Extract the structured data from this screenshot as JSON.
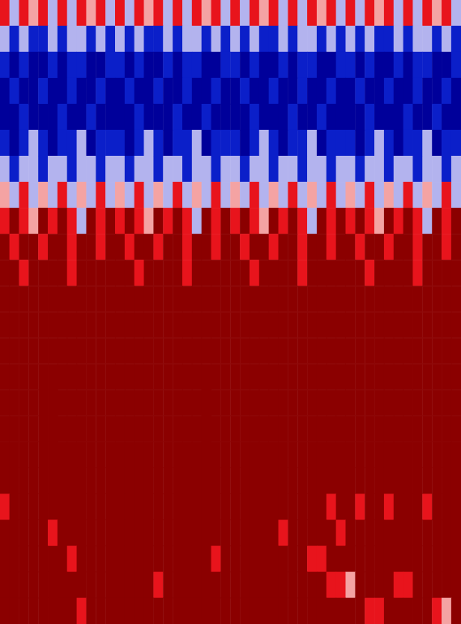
{
  "chart_data": {
    "type": "heatmap",
    "tick_labels": false,
    "grid": false,
    "color_range": [
      0,
      5
    ],
    "colors": [
      "#00009a",
      "#0b1fc9",
      "#b3b3ee",
      "#f4a3a3",
      "#e8141c",
      "#8b0000"
    ],
    "cells": [
      [
        4,
        2,
        4,
        3,
        4,
        2,
        4,
        2,
        4,
        3,
        4,
        2,
        4,
        2,
        4,
        3,
        4,
        2,
        4,
        2,
        4,
        3,
        4,
        2,
        4,
        2,
        4,
        3,
        4,
        2,
        4,
        2,
        4,
        3,
        4,
        2,
        4,
        2,
        4,
        3,
        4,
        2,
        4,
        2,
        4,
        3,
        4,
        2
      ],
      [
        2,
        1,
        2,
        1,
        1,
        2,
        1,
        2,
        2,
        1,
        2,
        1,
        2,
        1,
        2,
        1,
        1,
        2,
        1,
        2,
        2,
        1,
        2,
        1,
        2,
        1,
        2,
        1,
        1,
        2,
        1,
        2,
        2,
        1,
        2,
        1,
        2,
        1,
        2,
        1,
        1,
        2,
        1,
        2,
        2,
        1,
        2,
        1
      ],
      [
        1,
        0,
        1,
        0,
        0,
        1,
        0,
        1,
        1,
        0,
        0,
        1,
        1,
        0,
        1,
        0,
        0,
        1,
        0,
        1,
        1,
        0,
        0,
        1,
        1,
        0,
        1,
        0,
        0,
        1,
        0,
        1,
        1,
        0,
        0,
        1,
        1,
        0,
        1,
        0,
        0,
        1,
        0,
        1,
        1,
        0,
        0,
        1
      ],
      [
        0,
        1,
        0,
        0,
        1,
        0,
        0,
        1,
        0,
        0,
        1,
        0,
        0,
        1,
        0,
        0,
        1,
        0,
        0,
        1,
        0,
        0,
        1,
        0,
        0,
        1,
        0,
        0,
        1,
        0,
        0,
        1,
        0,
        0,
        1,
        0,
        0,
        1,
        0,
        0,
        1,
        0,
        0,
        1,
        0,
        0,
        1,
        0
      ],
      [
        0,
        0,
        1,
        0,
        0,
        0,
        1,
        0,
        0,
        1,
        0,
        0,
        0,
        0,
        1,
        0,
        0,
        0,
        1,
        0,
        0,
        1,
        0,
        0,
        0,
        0,
        1,
        0,
        0,
        0,
        1,
        0,
        0,
        1,
        0,
        0,
        0,
        0,
        1,
        0,
        0,
        0,
        1,
        0,
        0,
        1,
        0,
        0
      ],
      [
        1,
        0,
        1,
        2,
        1,
        0,
        1,
        1,
        2,
        0,
        1,
        1,
        1,
        0,
        1,
        2,
        1,
        0,
        1,
        1,
        2,
        0,
        1,
        1,
        1,
        0,
        1,
        2,
        1,
        0,
        1,
        1,
        2,
        0,
        1,
        1,
        1,
        0,
        1,
        2,
        1,
        0,
        1,
        1,
        2,
        0,
        1,
        1
      ],
      [
        2,
        1,
        2,
        2,
        1,
        2,
        2,
        1,
        2,
        2,
        1,
        2,
        2,
        1,
        2,
        2,
        1,
        2,
        2,
        1,
        2,
        2,
        1,
        2,
        2,
        1,
        2,
        2,
        1,
        2,
        2,
        1,
        2,
        2,
        1,
        2,
        2,
        1,
        2,
        2,
        1,
        2,
        2,
        1,
        2,
        2,
        1,
        2
      ],
      [
        3,
        2,
        4,
        2,
        3,
        2,
        4,
        2,
        3,
        2,
        4,
        2,
        3,
        2,
        4,
        2,
        3,
        2,
        4,
        2,
        3,
        2,
        4,
        2,
        3,
        2,
        4,
        2,
        3,
        2,
        4,
        2,
        3,
        2,
        4,
        2,
        3,
        2,
        4,
        2,
        3,
        2,
        4,
        2,
        3,
        2,
        4,
        2
      ],
      [
        4,
        5,
        4,
        3,
        5,
        4,
        5,
        4,
        2,
        5,
        4,
        5,
        4,
        5,
        4,
        3,
        5,
        4,
        5,
        4,
        2,
        5,
        4,
        5,
        4,
        5,
        4,
        3,
        5,
        4,
        5,
        4,
        2,
        5,
        4,
        5,
        4,
        5,
        4,
        3,
        5,
        4,
        5,
        4,
        2,
        5,
        4,
        5
      ],
      [
        5,
        4,
        5,
        5,
        4,
        5,
        5,
        4,
        5,
        5,
        4,
        5,
        5,
        4,
        5,
        5,
        4,
        5,
        5,
        4,
        5,
        5,
        4,
        5,
        5,
        4,
        5,
        5,
        4,
        5,
        5,
        4,
        5,
        5,
        4,
        5,
        5,
        4,
        5,
        5,
        4,
        5,
        5,
        4,
        5,
        5,
        4,
        5
      ],
      [
        5,
        5,
        4,
        5,
        5,
        5,
        5,
        4,
        5,
        5,
        5,
        5,
        5,
        5,
        4,
        5,
        5,
        5,
        5,
        4,
        5,
        5,
        5,
        5,
        5,
        5,
        4,
        5,
        5,
        5,
        5,
        4,
        5,
        5,
        5,
        5,
        5,
        5,
        4,
        5,
        5,
        5,
        5,
        4,
        5,
        5,
        5,
        5
      ],
      [
        5,
        5,
        5,
        5,
        5,
        5,
        5,
        5,
        5,
        5,
        5,
        5,
        5,
        5,
        5,
        5,
        5,
        5,
        5,
        5,
        5,
        5,
        5,
        5,
        5,
        5,
        5,
        5,
        5,
        5,
        5,
        5,
        5,
        5,
        5,
        5,
        5,
        5,
        5,
        5,
        5,
        5,
        5,
        5,
        5,
        5,
        5,
        5
      ],
      [
        5,
        5,
        5,
        5,
        5,
        5,
        5,
        5,
        5,
        5,
        5,
        5,
        5,
        5,
        5,
        5,
        5,
        5,
        5,
        5,
        5,
        5,
        5,
        5,
        5,
        5,
        5,
        5,
        5,
        5,
        5,
        5,
        5,
        5,
        5,
        5,
        5,
        5,
        5,
        5,
        5,
        5,
        5,
        5,
        5,
        5,
        5,
        5
      ],
      [
        5,
        5,
        5,
        5,
        5,
        5,
        5,
        5,
        5,
        5,
        5,
        5,
        5,
        5,
        5,
        5,
        5,
        5,
        5,
        5,
        5,
        5,
        5,
        5,
        5,
        5,
        5,
        5,
        5,
        5,
        5,
        5,
        5,
        5,
        5,
        5,
        5,
        5,
        5,
        5,
        5,
        5,
        5,
        5,
        5,
        5,
        5,
        5
      ],
      [
        5,
        5,
        5,
        5,
        5,
        5,
        5,
        5,
        5,
        5,
        5,
        5,
        5,
        5,
        5,
        5,
        5,
        5,
        5,
        5,
        5,
        5,
        5,
        5,
        5,
        5,
        5,
        5,
        5,
        5,
        5,
        5,
        5,
        5,
        5,
        5,
        5,
        5,
        5,
        5,
        5,
        5,
        5,
        5,
        5,
        5,
        5,
        5
      ],
      [
        5,
        5,
        5,
        5,
        5,
        5,
        5,
        5,
        5,
        5,
        5,
        5,
        5,
        5,
        5,
        5,
        5,
        5,
        5,
        5,
        5,
        5,
        5,
        5,
        5,
        5,
        5,
        5,
        5,
        5,
        5,
        5,
        5,
        5,
        5,
        5,
        5,
        5,
        5,
        5,
        5,
        5,
        5,
        5,
        5,
        5,
        5,
        5
      ],
      [
        5,
        5,
        5,
        5,
        5,
        5,
        5,
        5,
        5,
        5,
        5,
        5,
        5,
        5,
        5,
        5,
        5,
        5,
        5,
        5,
        5,
        5,
        5,
        5,
        5,
        5,
        5,
        5,
        5,
        5,
        5,
        5,
        5,
        5,
        5,
        5,
        5,
        5,
        5,
        5,
        5,
        5,
        5,
        5,
        5,
        5,
        5,
        5
      ],
      [
        5,
        5,
        5,
        5,
        5,
        5,
        5,
        5,
        5,
        5,
        5,
        5,
        5,
        5,
        5,
        5,
        5,
        5,
        5,
        5,
        5,
        5,
        5,
        5,
        5,
        5,
        5,
        5,
        5,
        5,
        5,
        5,
        5,
        5,
        5,
        5,
        5,
        5,
        5,
        5,
        5,
        5,
        5,
        5,
        5,
        5,
        5,
        5
      ],
      [
        5,
        5,
        5,
        5,
        5,
        5,
        5,
        5,
        5,
        5,
        5,
        5,
        5,
        5,
        5,
        5,
        5,
        5,
        5,
        5,
        5,
        5,
        5,
        5,
        5,
        5,
        5,
        5,
        5,
        5,
        5,
        5,
        5,
        5,
        5,
        5,
        5,
        5,
        5,
        5,
        5,
        5,
        5,
        5,
        5,
        5,
        5,
        5
      ],
      [
        4,
        5,
        5,
        5,
        5,
        5,
        5,
        5,
        5,
        5,
        5,
        5,
        5,
        5,
        5,
        5,
        5,
        5,
        5,
        5,
        5,
        5,
        5,
        5,
        5,
        5,
        5,
        5,
        5,
        5,
        5,
        5,
        5,
        5,
        4,
        5,
        5,
        4,
        5,
        5,
        4,
        5,
        5,
        5,
        4,
        5,
        5,
        5
      ],
      [
        5,
        5,
        5,
        5,
        5,
        4,
        5,
        5,
        5,
        5,
        5,
        5,
        5,
        5,
        5,
        5,
        5,
        5,
        5,
        5,
        5,
        5,
        5,
        5,
        5,
        5,
        5,
        5,
        5,
        4,
        5,
        5,
        5,
        5,
        5,
        4,
        5,
        5,
        5,
        5,
        5,
        5,
        5,
        5,
        5,
        5,
        5,
        5
      ],
      [
        5,
        5,
        5,
        5,
        5,
        5,
        5,
        4,
        5,
        5,
        5,
        5,
        5,
        5,
        5,
        5,
        5,
        5,
        5,
        5,
        5,
        5,
        4,
        5,
        5,
        5,
        5,
        5,
        5,
        5,
        5,
        5,
        4,
        4,
        5,
        5,
        5,
        5,
        5,
        5,
        5,
        5,
        5,
        5,
        5,
        5,
        5,
        5
      ],
      [
        5,
        5,
        5,
        5,
        5,
        5,
        5,
        5,
        5,
        5,
        5,
        5,
        5,
        5,
        5,
        5,
        4,
        5,
        5,
        5,
        5,
        5,
        5,
        5,
        5,
        5,
        5,
        5,
        5,
        5,
        5,
        5,
        5,
        5,
        4,
        4,
        3,
        5,
        5,
        5,
        5,
        4,
        4,
        5,
        5,
        5,
        5,
        5
      ],
      [
        5,
        5,
        5,
        5,
        5,
        5,
        5,
        5,
        4,
        5,
        5,
        5,
        5,
        5,
        5,
        5,
        5,
        5,
        5,
        5,
        5,
        5,
        5,
        5,
        5,
        5,
        5,
        5,
        5,
        5,
        5,
        5,
        5,
        5,
        5,
        5,
        5,
        5,
        4,
        4,
        5,
        5,
        5,
        5,
        5,
        4,
        3,
        5
      ]
    ]
  }
}
